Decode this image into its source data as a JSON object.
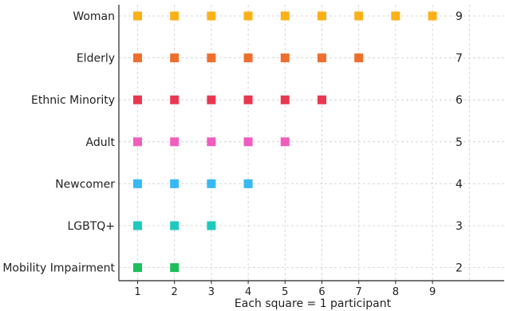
{
  "chart_data": {
    "type": "scatter",
    "title": "",
    "xlabel": "Each square = 1 participant",
    "ylabel": "",
    "x_ticks": [
      "1",
      "2",
      "3",
      "4",
      "5",
      "6",
      "7",
      "8",
      "9"
    ],
    "xlim": [
      0.5,
      10.4
    ],
    "grid": true,
    "categories": [
      {
        "label": "Woman",
        "count": 9,
        "count_label": "9",
        "color": "#FBB117"
      },
      {
        "label": "Elderly",
        "count": 7,
        "count_label": "7",
        "color": "#EE6F2D"
      },
      {
        "label": "Ethnic Minority",
        "count": 6,
        "count_label": "6",
        "color": "#E8384F"
      },
      {
        "label": "Adult",
        "count": 5,
        "count_label": "5",
        "color": "#F25CBE"
      },
      {
        "label": "Newcomer",
        "count": 4,
        "count_label": "4",
        "color": "#38B9F5"
      },
      {
        "label": "LGBTQ+",
        "count": 3,
        "count_label": "3",
        "color": "#1FC9BE"
      },
      {
        "label": "Mobility Impairment",
        "count": 2,
        "count_label": "2",
        "color": "#1DBF5C"
      }
    ]
  }
}
